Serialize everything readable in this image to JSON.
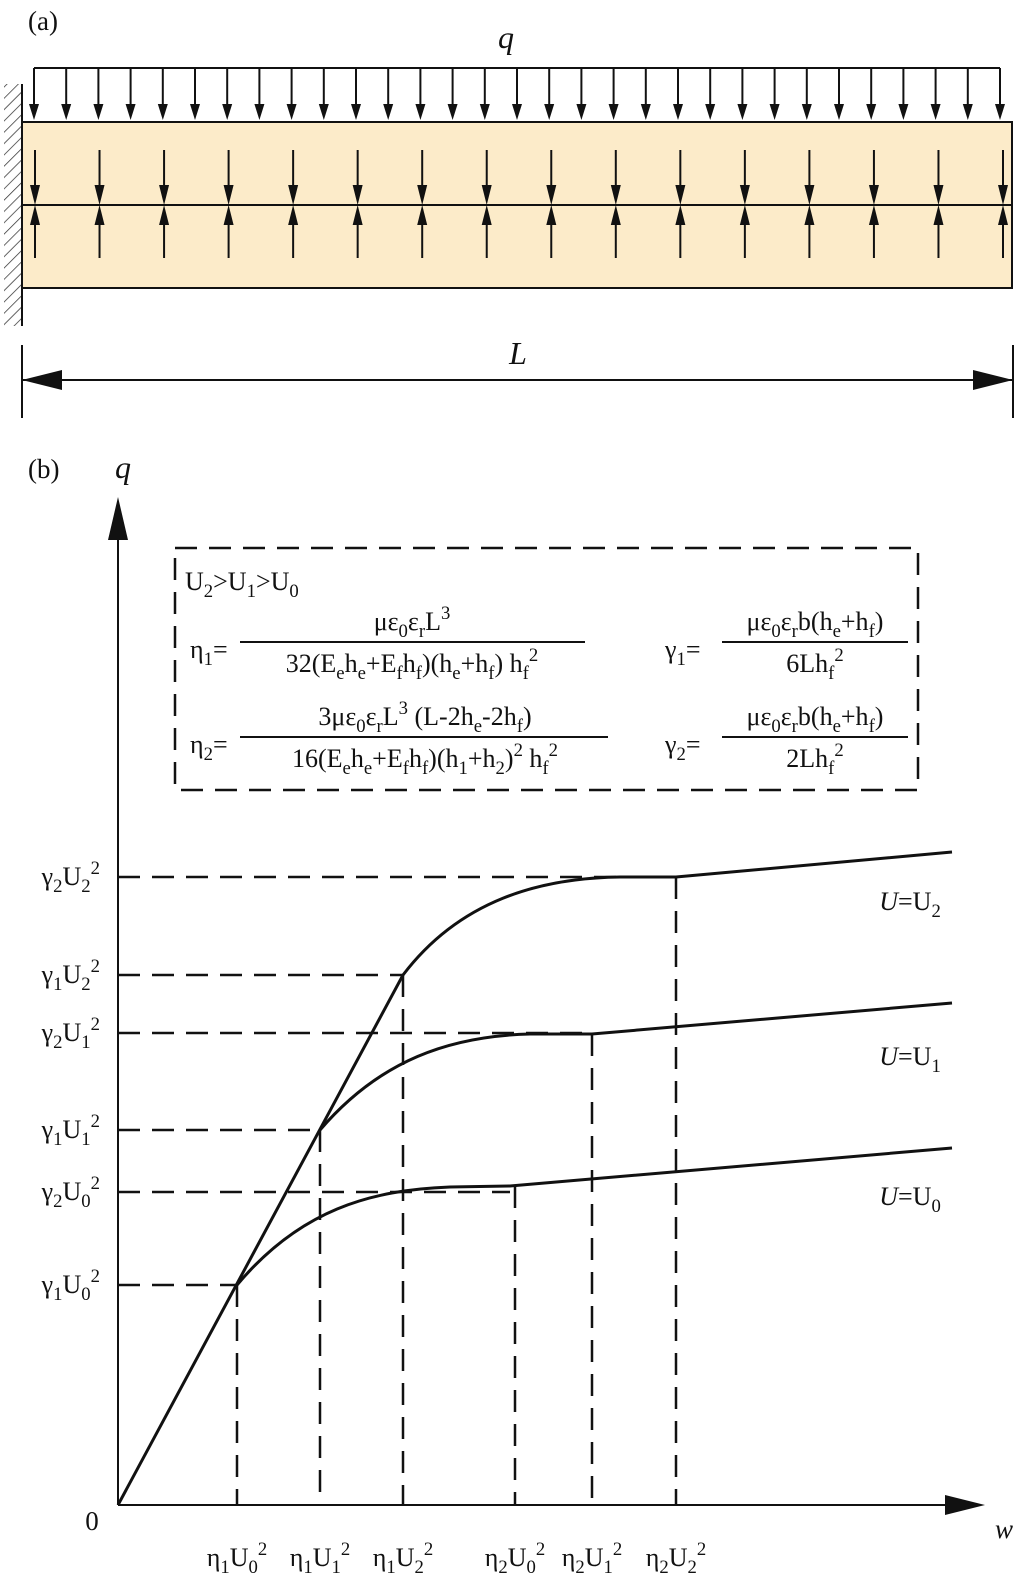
{
  "panel_a": {
    "label": "(a)",
    "load_label": "q",
    "length_label": "L"
  },
  "panel_b": {
    "label": "(b)",
    "y_axis_label": "q",
    "x_axis_label": "w",
    "origin_label": "0",
    "condition": [
      {
        "text": "U"
      },
      {
        "text": "2",
        "pos": "sub"
      },
      {
        "text": ">U"
      },
      {
        "text": "1",
        "pos": "sub"
      },
      {
        "text": ">U"
      },
      {
        "text": "0",
        "pos": "sub"
      }
    ],
    "formulas": [
      {
        "lhs": [
          {
            "text": "η"
          },
          {
            "text": "1",
            "pos": "sub"
          },
          {
            "text": "="
          }
        ],
        "numerator": [
          {
            "text": "με"
          },
          {
            "text": "0",
            "pos": "sub"
          },
          {
            "text": "ε"
          },
          {
            "text": "r",
            "pos": "sub"
          },
          {
            "text": "L"
          },
          {
            "text": "3",
            "pos": "sup"
          }
        ],
        "denominator": [
          {
            "text": "32(E"
          },
          {
            "text": "e",
            "pos": "sub"
          },
          {
            "text": "h"
          },
          {
            "text": "e",
            "pos": "sub"
          },
          {
            "text": "+E"
          },
          {
            "text": "f",
            "pos": "sub"
          },
          {
            "text": "h"
          },
          {
            "text": "f",
            "pos": "sub"
          },
          {
            "text": ")(h"
          },
          {
            "text": "e",
            "pos": "sub"
          },
          {
            "text": "+h"
          },
          {
            "text": "f",
            "pos": "sub"
          },
          {
            "text": ") h"
          },
          {
            "text": "f",
            "pos": "sub"
          },
          {
            "text": "2",
            "pos": "sup"
          }
        ]
      },
      {
        "lhs": [
          {
            "text": "γ"
          },
          {
            "text": "1",
            "pos": "sub"
          },
          {
            "text": "="
          }
        ],
        "numerator": [
          {
            "text": "με"
          },
          {
            "text": "0",
            "pos": "sub"
          },
          {
            "text": "ε"
          },
          {
            "text": "r",
            "pos": "sub"
          },
          {
            "text": "b(h"
          },
          {
            "text": "e",
            "pos": "sub"
          },
          {
            "text": "+h"
          },
          {
            "text": "f",
            "pos": "sub"
          },
          {
            "text": ")"
          }
        ],
        "denominator": [
          {
            "text": "6Lh"
          },
          {
            "text": "f",
            "pos": "sub"
          },
          {
            "text": "2",
            "pos": "sup"
          }
        ]
      },
      {
        "lhs": [
          {
            "text": "η"
          },
          {
            "text": "2",
            "pos": "sub"
          },
          {
            "text": "="
          }
        ],
        "numerator": [
          {
            "text": "3με"
          },
          {
            "text": "0",
            "pos": "sub"
          },
          {
            "text": "ε"
          },
          {
            "text": "r",
            "pos": "sub"
          },
          {
            "text": "L"
          },
          {
            "text": "3",
            "pos": "sup"
          },
          {
            "text": " (L-2h"
          },
          {
            "text": "e",
            "pos": "sub"
          },
          {
            "text": "-2h"
          },
          {
            "text": "f",
            "pos": "sub"
          },
          {
            "text": ")"
          }
        ],
        "denominator": [
          {
            "text": "16(E"
          },
          {
            "text": "e",
            "pos": "sub"
          },
          {
            "text": "h"
          },
          {
            "text": "e",
            "pos": "sub"
          },
          {
            "text": "+E"
          },
          {
            "text": "f",
            "pos": "sub"
          },
          {
            "text": "h"
          },
          {
            "text": "f",
            "pos": "sub"
          },
          {
            "text": ")(h"
          },
          {
            "text": "1",
            "pos": "sub"
          },
          {
            "text": "+h"
          },
          {
            "text": "2",
            "pos": "sub"
          },
          {
            "text": ")"
          },
          {
            "text": "2",
            "pos": "sup"
          },
          {
            "text": " h"
          },
          {
            "text": "f",
            "pos": "sub"
          },
          {
            "text": "2",
            "pos": "sup"
          }
        ]
      },
      {
        "lhs": [
          {
            "text": "γ"
          },
          {
            "text": "2",
            "pos": "sub"
          },
          {
            "text": "="
          }
        ],
        "numerator": [
          {
            "text": "με"
          },
          {
            "text": "0",
            "pos": "sub"
          },
          {
            "text": "ε"
          },
          {
            "text": "r",
            "pos": "sub"
          },
          {
            "text": "b(h"
          },
          {
            "text": "e",
            "pos": "sub"
          },
          {
            "text": "+h"
          },
          {
            "text": "f",
            "pos": "sub"
          },
          {
            "text": ")"
          }
        ],
        "denominator": [
          {
            "text": "2Lh"
          },
          {
            "text": "f",
            "pos": "sub"
          },
          {
            "text": "2",
            "pos": "sup"
          }
        ]
      }
    ],
    "y_labels": [
      [
        {
          "text": "γ"
        },
        {
          "text": "2",
          "pos": "sub"
        },
        {
          "text": "U"
        },
        {
          "text": "2",
          "pos": "sub"
        },
        {
          "text": "2",
          "pos": "sup"
        }
      ],
      [
        {
          "text": "γ"
        },
        {
          "text": "1",
          "pos": "sub"
        },
        {
          "text": "U"
        },
        {
          "text": "2",
          "pos": "sub"
        },
        {
          "text": "2",
          "pos": "sup"
        }
      ],
      [
        {
          "text": "γ"
        },
        {
          "text": "2",
          "pos": "sub"
        },
        {
          "text": "U"
        },
        {
          "text": "1",
          "pos": "sub"
        },
        {
          "text": "2",
          "pos": "sup"
        }
      ],
      [
        {
          "text": "γ"
        },
        {
          "text": "1",
          "pos": "sub"
        },
        {
          "text": "U"
        },
        {
          "text": "1",
          "pos": "sub"
        },
        {
          "text": "2",
          "pos": "sup"
        }
      ],
      [
        {
          "text": "γ"
        },
        {
          "text": "2",
          "pos": "sub"
        },
        {
          "text": "U"
        },
        {
          "text": "0",
          "pos": "sub"
        },
        {
          "text": "2",
          "pos": "sup"
        }
      ],
      [
        {
          "text": "γ"
        },
        {
          "text": "1",
          "pos": "sub"
        },
        {
          "text": "U"
        },
        {
          "text": "0",
          "pos": "sub"
        },
        {
          "text": "2",
          "pos": "sup"
        }
      ]
    ],
    "x_labels": [
      [
        {
          "text": "η"
        },
        {
          "text": "1",
          "pos": "sub"
        },
        {
          "text": "U"
        },
        {
          "text": "0",
          "pos": "sub"
        },
        {
          "text": "2",
          "pos": "sup"
        }
      ],
      [
        {
          "text": "η"
        },
        {
          "text": "1",
          "pos": "sub"
        },
        {
          "text": "U"
        },
        {
          "text": "1",
          "pos": "sub"
        },
        {
          "text": "2",
          "pos": "sup"
        }
      ],
      [
        {
          "text": "η"
        },
        {
          "text": "1",
          "pos": "sub"
        },
        {
          "text": "U"
        },
        {
          "text": "2",
          "pos": "sub"
        },
        {
          "text": "2",
          "pos": "sup"
        }
      ],
      [
        {
          "text": "η"
        },
        {
          "text": "2",
          "pos": "sub"
        },
        {
          "text": "U"
        },
        {
          "text": "0",
          "pos": "sub"
        },
        {
          "text": "2",
          "pos": "sup"
        }
      ],
      [
        {
          "text": "η"
        },
        {
          "text": "2",
          "pos": "sub"
        },
        {
          "text": "U"
        },
        {
          "text": "1",
          "pos": "sub"
        },
        {
          "text": "2",
          "pos": "sup"
        }
      ],
      [
        {
          "text": "η"
        },
        {
          "text": "2",
          "pos": "sub"
        },
        {
          "text": "U"
        },
        {
          "text": "2",
          "pos": "sub"
        },
        {
          "text": "2",
          "pos": "sup"
        }
      ]
    ],
    "curve_labels": [
      [
        {
          "text": "U",
          "style": "italic"
        },
        {
          "text": "=U"
        },
        {
          "text": "2",
          "pos": "sub"
        }
      ],
      [
        {
          "text": "U",
          "style": "italic"
        },
        {
          "text": "=U"
        },
        {
          "text": "1",
          "pos": "sub"
        }
      ],
      [
        {
          "text": "U",
          "style": "italic"
        },
        {
          "text": "=U"
        },
        {
          "text": "0",
          "pos": "sub"
        }
      ]
    ]
  }
}
